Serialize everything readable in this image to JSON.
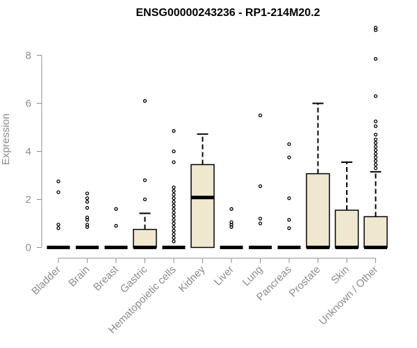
{
  "chart_data": {
    "type": "box",
    "title": "ENSG00000243236 - RP1-214M20.2",
    "xlabel": "",
    "ylabel": "Expression",
    "ylim": [
      0,
      9.2
    ],
    "yticks": [
      0,
      2,
      4,
      6,
      8
    ],
    "grid": false,
    "colors": {
      "box_fill": "#efe8cf",
      "stroke": "#000000",
      "axis": "#8c8c8c"
    },
    "categories": [
      "Bladder",
      "Brain",
      "Breast",
      "Gastric",
      "Hematopoietic cells",
      "Kidney",
      "Liver",
      "Lung",
      "Pancreas",
      "Prostate",
      "Skin",
      "Unknown / Other"
    ],
    "boxes": [
      {
        "q1": 0,
        "median": 0,
        "q3": 0,
        "whisker_low": 0,
        "whisker_high": 0,
        "outliers": [
          0.8,
          0.95,
          2.3,
          2.75
        ]
      },
      {
        "q1": 0,
        "median": 0,
        "q3": 0,
        "whisker_low": 0,
        "whisker_high": 0,
        "outliers": [
          0.85,
          0.95,
          1.15,
          1.25,
          1.65,
          1.9,
          2.05,
          2.25
        ]
      },
      {
        "q1": 0,
        "median": 0,
        "q3": 0,
        "whisker_low": 0,
        "whisker_high": 0,
        "outliers": [
          0.9,
          1.6
        ]
      },
      {
        "q1": 0,
        "median": 0,
        "q3": 0.75,
        "whisker_low": 0,
        "whisker_high": 1.42,
        "outliers": [
          2.0,
          2.8,
          6.1
        ]
      },
      {
        "q1": 0,
        "median": 0,
        "q3": 0,
        "whisker_low": 0,
        "whisker_high": 0,
        "outliers": [
          0.25,
          0.4,
          0.55,
          0.7,
          0.85,
          1.0,
          1.15,
          1.3,
          1.45,
          1.6,
          1.75,
          1.9,
          2.05,
          2.2,
          2.35,
          2.5,
          3.55,
          4.0,
          4.85
        ]
      },
      {
        "q1": 0,
        "median": 2.08,
        "q3": 3.45,
        "whisker_low": 0,
        "whisker_high": 4.72,
        "outliers": []
      },
      {
        "q1": 0,
        "median": 0,
        "q3": 0,
        "whisker_low": 0,
        "whisker_high": 0,
        "outliers": [
          0.85,
          0.95,
          1.05,
          1.6
        ]
      },
      {
        "q1": 0,
        "median": 0,
        "q3": 0,
        "whisker_low": 0,
        "whisker_high": 0,
        "outliers": [
          1.0,
          1.2,
          2.55,
          5.5
        ]
      },
      {
        "q1": 0,
        "median": 0,
        "q3": 0,
        "whisker_low": 0,
        "whisker_high": 0,
        "outliers": [
          0.8,
          1.15,
          2.05,
          3.75,
          4.3
        ]
      },
      {
        "q1": 0,
        "median": 0,
        "q3": 3.07,
        "whisker_low": 0,
        "whisker_high": 6.0,
        "outliers": []
      },
      {
        "q1": 0,
        "median": 0,
        "q3": 1.55,
        "whisker_low": 0,
        "whisker_high": 3.55,
        "outliers": []
      },
      {
        "q1": 0,
        "median": 0,
        "q3": 1.28,
        "whisker_low": 0,
        "whisker_high": 3.15,
        "outliers": [
          3.3,
          3.45,
          3.6,
          3.75,
          3.9,
          4.05,
          4.2,
          4.35,
          4.5,
          4.7,
          5.05,
          5.25,
          6.3,
          7.85,
          9.05,
          9.15
        ]
      }
    ]
  }
}
